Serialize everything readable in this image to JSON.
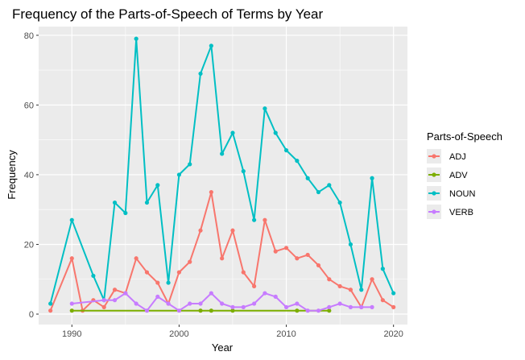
{
  "chart_data": {
    "type": "line",
    "title": "Frequency of the Parts-of-Speech of Terms by Year",
    "xlabel": "Year",
    "ylabel": "Frequency",
    "xlim": [
      1986.9,
      2021.3
    ],
    "ylim": [
      -3,
      82.5
    ],
    "x_ticks": [
      1990,
      2000,
      2010,
      2020
    ],
    "y_ticks": [
      0,
      20,
      40,
      60,
      80
    ],
    "grid": true,
    "legend": {
      "title": "Parts-of-Speech",
      "position": "right"
    },
    "series": [
      {
        "name": "ADJ",
        "color": "#F8766D",
        "points": [
          [
            1988,
            1
          ],
          [
            1990,
            16
          ],
          [
            1991,
            1
          ],
          [
            1992,
            4
          ],
          [
            1993,
            2
          ],
          [
            1994,
            7
          ],
          [
            1995,
            6
          ],
          [
            1996,
            16
          ],
          [
            1997,
            12
          ],
          [
            1998,
            9
          ],
          [
            1999,
            3
          ],
          [
            2000,
            12
          ],
          [
            2001,
            15
          ],
          [
            2002,
            24
          ],
          [
            2003,
            35
          ],
          [
            2004,
            16
          ],
          [
            2005,
            24
          ],
          [
            2006,
            12
          ],
          [
            2007,
            8
          ],
          [
            2008,
            27
          ],
          [
            2009,
            18
          ],
          [
            2010,
            19
          ],
          [
            2011,
            16
          ],
          [
            2012,
            17
          ],
          [
            2013,
            14
          ],
          [
            2014,
            10
          ],
          [
            2015,
            8
          ],
          [
            2016,
            7
          ],
          [
            2017,
            2
          ],
          [
            2018,
            10
          ],
          [
            2019,
            4
          ],
          [
            2020,
            2
          ]
        ]
      },
      {
        "name": "ADV",
        "color": "#7CAE00",
        "points": [
          [
            1990,
            1
          ],
          [
            2002,
            1
          ],
          [
            2003,
            1
          ],
          [
            2005,
            1
          ],
          [
            2011,
            1
          ],
          [
            2014,
            1
          ]
        ]
      },
      {
        "name": "NOUN",
        "color": "#00BFC4",
        "points": [
          [
            1988,
            3
          ],
          [
            1990,
            27
          ],
          [
            1992,
            11
          ],
          [
            1993,
            4
          ],
          [
            1994,
            32
          ],
          [
            1995,
            29
          ],
          [
            1996,
            79
          ],
          [
            1997,
            32
          ],
          [
            1998,
            37
          ],
          [
            1999,
            9
          ],
          [
            2000,
            40
          ],
          [
            2001,
            43
          ],
          [
            2002,
            69
          ],
          [
            2003,
            77
          ],
          [
            2004,
            46
          ],
          [
            2005,
            52
          ],
          [
            2006,
            41
          ],
          [
            2007,
            27
          ],
          [
            2008,
            59
          ],
          [
            2009,
            52
          ],
          [
            2010,
            47
          ],
          [
            2011,
            44
          ],
          [
            2012,
            39
          ],
          [
            2013,
            35
          ],
          [
            2014,
            37
          ],
          [
            2015,
            32
          ],
          [
            2016,
            20
          ],
          [
            2017,
            7
          ],
          [
            2018,
            39
          ],
          [
            2019,
            13
          ],
          [
            2020,
            6
          ]
        ]
      },
      {
        "name": "VERB",
        "color": "#C77CFF",
        "points": [
          [
            1990,
            3
          ],
          [
            1993,
            4
          ],
          [
            1994,
            4
          ],
          [
            1995,
            6
          ],
          [
            1996,
            3
          ],
          [
            1997,
            1
          ],
          [
            1998,
            5
          ],
          [
            1999,
            3
          ],
          [
            2000,
            1
          ],
          [
            2001,
            3
          ],
          [
            2002,
            3
          ],
          [
            2003,
            6
          ],
          [
            2004,
            3
          ],
          [
            2005,
            2
          ],
          [
            2006,
            2
          ],
          [
            2007,
            3
          ],
          [
            2008,
            6
          ],
          [
            2009,
            5
          ],
          [
            2010,
            2
          ],
          [
            2011,
            3
          ],
          [
            2012,
            1
          ],
          [
            2013,
            1
          ],
          [
            2014,
            2
          ],
          [
            2015,
            3
          ],
          [
            2016,
            2
          ],
          [
            2017,
            2
          ],
          [
            2018,
            2
          ]
        ]
      }
    ]
  }
}
